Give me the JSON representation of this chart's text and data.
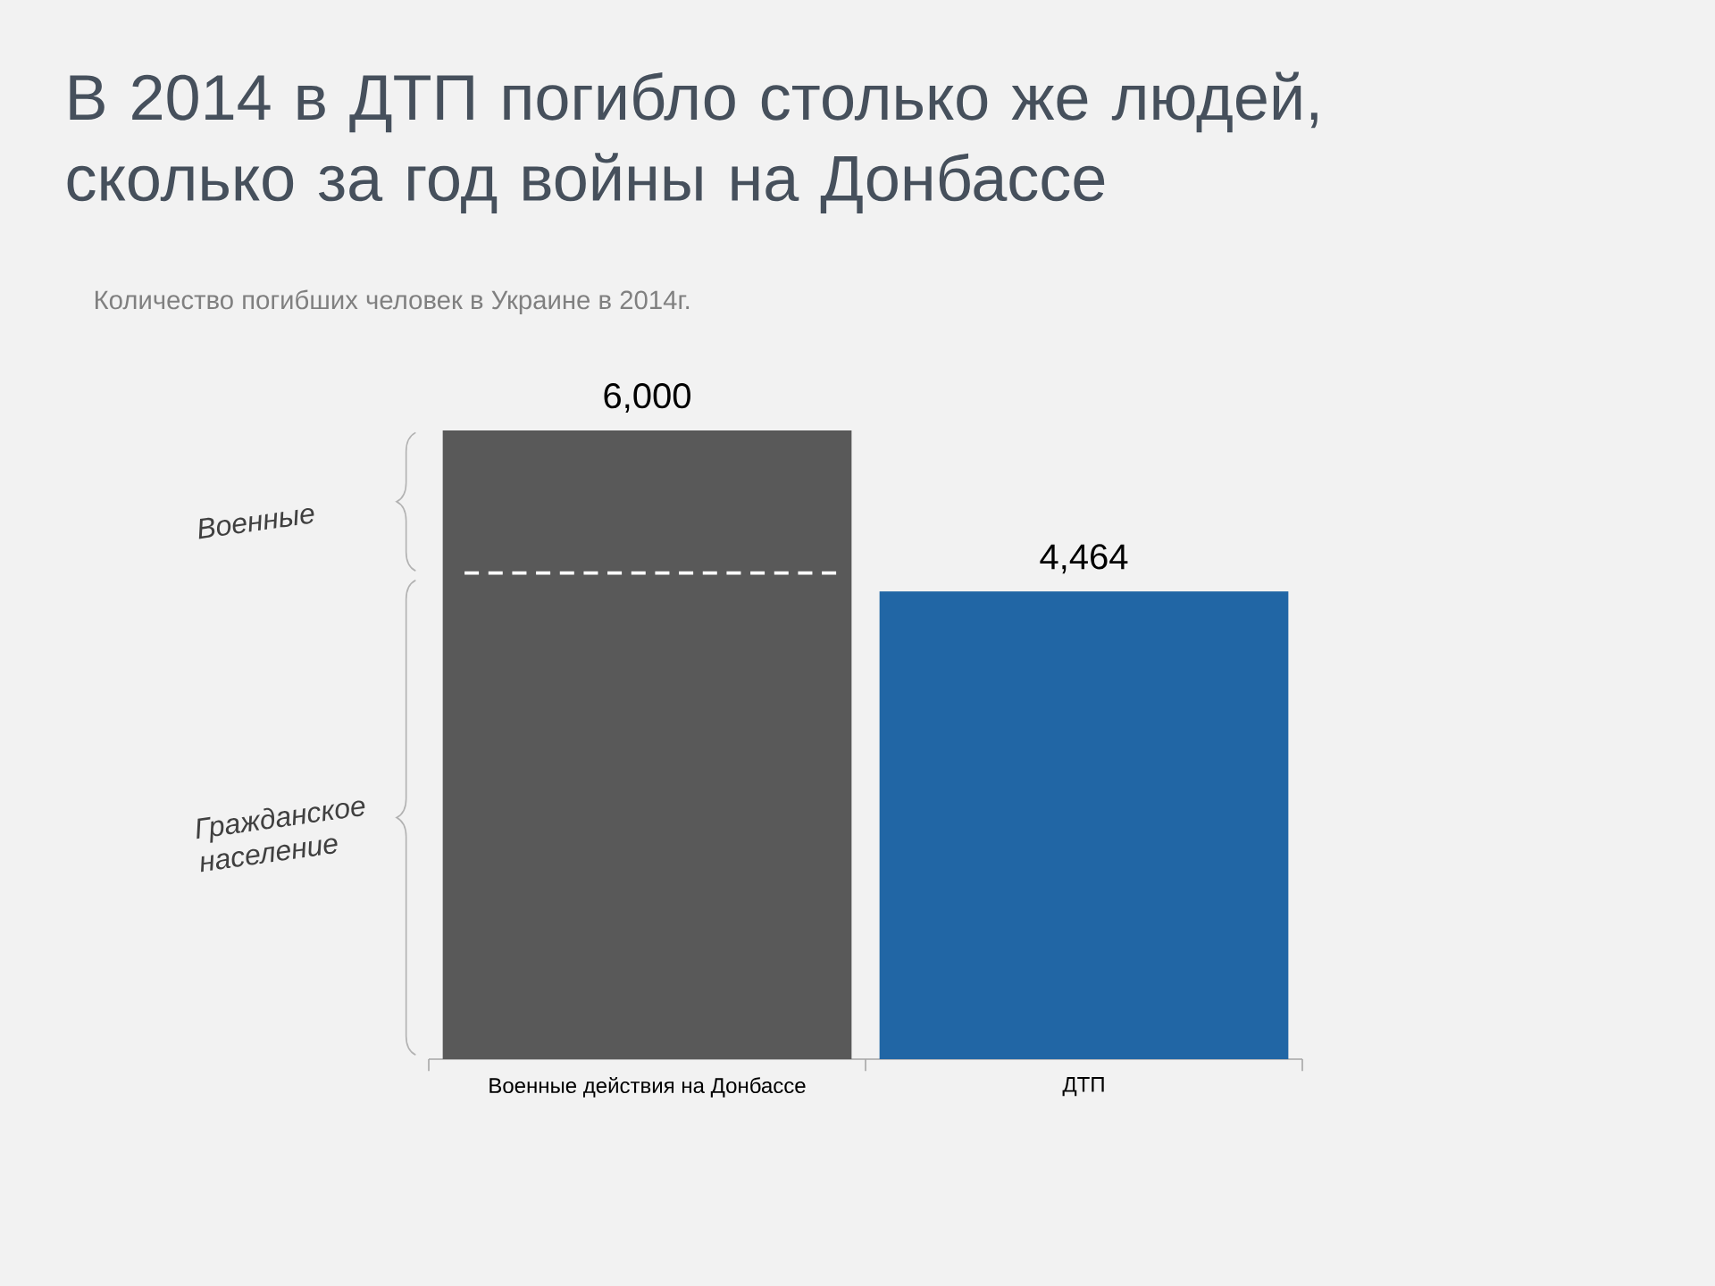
{
  "chart_data": {
    "type": "bar",
    "title": "В 2014 в ДТП погибло столько же людей, сколько за год войны на Донбассе",
    "subtitle": "Количество погибших человек в Украине в 2014г.",
    "categories": [
      "Военные действия на Донбассе",
      "ДТП"
    ],
    "values": [
      6000,
      4464
    ],
    "colors": [
      "#595959",
      "#2166a5"
    ],
    "value_labels": [
      "6,000",
      "4,464"
    ],
    "ref_lines": [
      {
        "axis": "y",
        "value": 4640,
        "color": "#ffffff",
        "line_style": "dashed"
      }
    ],
    "annotations": [
      "Военные",
      "Гражданское население"
    ]
  }
}
